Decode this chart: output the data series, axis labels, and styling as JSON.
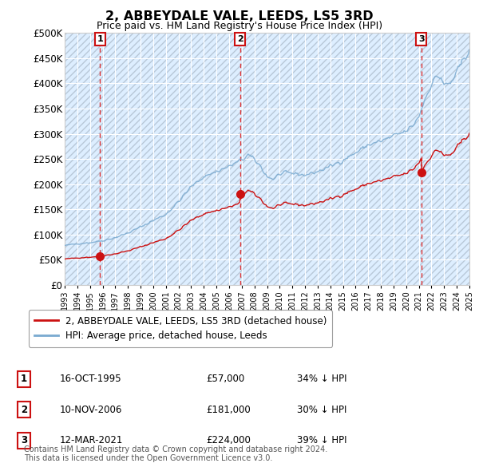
{
  "title": "2, ABBEYDALE VALE, LEEDS, LS5 3RD",
  "subtitle": "Price paid vs. HM Land Registry's House Price Index (HPI)",
  "bg_color": "#ddeeff",
  "hatch_color": "#b8c8d8",
  "ylim": [
    0,
    500000
  ],
  "yticks": [
    0,
    50000,
    100000,
    150000,
    200000,
    250000,
    300000,
    350000,
    400000,
    450000,
    500000
  ],
  "ytick_labels": [
    "£0",
    "£50K",
    "£100K",
    "£150K",
    "£200K",
    "£250K",
    "£300K",
    "£350K",
    "£400K",
    "£450K",
    "£500K"
  ],
  "x_start_year": 1993,
  "x_end_year": 2025,
  "sales": [
    {
      "year": 1995.79,
      "price": 57000,
      "label": "1"
    },
    {
      "year": 2006.86,
      "price": 181000,
      "label": "2"
    },
    {
      "year": 2021.19,
      "price": 224000,
      "label": "3"
    }
  ],
  "hpi_line_color": "#7aaad0",
  "sale_line_color": "#cc1111",
  "sale_dot_color": "#cc1111",
  "vline_color": "#dd3333",
  "legend_entries": [
    "2, ABBEYDALE VALE, LEEDS, LS5 3RD (detached house)",
    "HPI: Average price, detached house, Leeds"
  ],
  "table_rows": [
    {
      "num": "1",
      "date": "16-OCT-1995",
      "price": "£57,000",
      "hpi": "34% ↓ HPI"
    },
    {
      "num": "2",
      "date": "10-NOV-2006",
      "price": "£181,000",
      "hpi": "30% ↓ HPI"
    },
    {
      "num": "3",
      "date": "12-MAR-2021",
      "price": "£224,000",
      "hpi": "39% ↓ HPI"
    }
  ],
  "footnote": "Contains HM Land Registry data © Crown copyright and database right 2024.\nThis data is licensed under the Open Government Licence v3.0."
}
